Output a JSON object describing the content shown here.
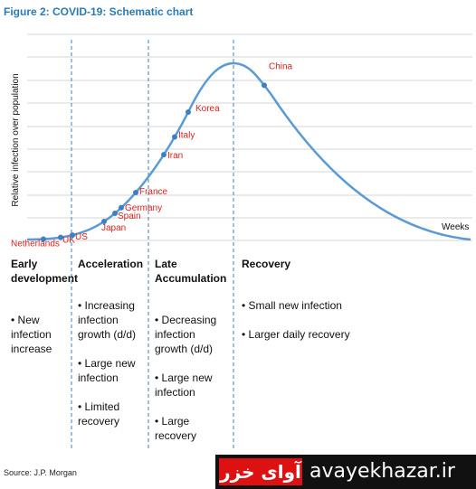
{
  "title": "Figure 2: COVID-19: Schematic chart",
  "y_axis_label": "Relative infection over population",
  "x_axis_label": "Weeks",
  "countries": [
    "Netherlands",
    "UK",
    "US",
    "Japan",
    "Spain",
    "Germany",
    "France",
    "Iran",
    "Italy",
    "Korea",
    "China"
  ],
  "phases": [
    {
      "heading": "Early development",
      "bullets": [
        "• New infection increase"
      ]
    },
    {
      "heading": "Acceleration",
      "bullets": [
        "• Increasing infection growth (d/d)",
        "• Large new infection",
        "• Limited recovery"
      ]
    },
    {
      "heading": "Late Accumulation",
      "bullets": [
        "• Decreasing infection growth (d/d)",
        "• Large new infection",
        "• Large recovery"
      ]
    },
    {
      "heading": "Recovery",
      "bullets": [
        "• Small new infection",
        "• Larger daily recovery"
      ]
    }
  ],
  "source": "Source: J.P. Morgan",
  "watermark": {
    "logo": "آوای خزر",
    "site": "avayekhazar.ir"
  }
}
